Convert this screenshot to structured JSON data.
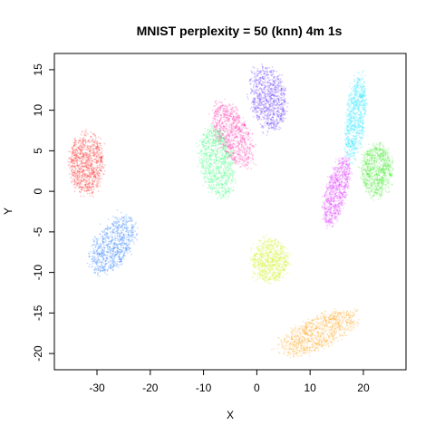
{
  "chart_data": {
    "type": "scatter",
    "title": "MNIST perplexity = 50 (knn) 4m 1s",
    "xlabel": "X",
    "ylabel": "Y",
    "xlim": [
      -38,
      28
    ],
    "ylim": [
      -22,
      17
    ],
    "x_ticks": [
      -30,
      -20,
      -10,
      0,
      10,
      20
    ],
    "y_ticks": [
      -20,
      -15,
      -10,
      -5,
      0,
      5,
      10,
      15
    ],
    "grid": false,
    "legend": "none",
    "series": [
      {
        "color": "#ff0000",
        "cx": -32.0,
        "cy": 3.5,
        "rx": 3.0,
        "ry": 3.5,
        "angle": 0,
        "n": 900
      },
      {
        "color": "#0066ff",
        "cx": -27.0,
        "cy": -6.6,
        "rx": 2.5,
        "ry": 4.5,
        "angle": -55,
        "n": 800
      },
      {
        "color": "#ff1aa6",
        "cx": -4.5,
        "cy": 7.0,
        "rx": 2.5,
        "ry": 4.5,
        "angle": 45,
        "n": 900
      },
      {
        "color": "#1aff66",
        "cx": -7.5,
        "cy": 3.5,
        "rx": 2.8,
        "ry": 4.2,
        "angle": 20,
        "n": 900
      },
      {
        "color": "#4d1aff",
        "cx": 2.2,
        "cy": 11.5,
        "rx": 3.0,
        "ry": 3.8,
        "angle": 30,
        "n": 900
      },
      {
        "color": "#00e5ff",
        "cx": 18.5,
        "cy": 9.0,
        "rx": 1.7,
        "ry": 5.0,
        "angle": -10,
        "n": 800
      },
      {
        "color": "#33e61a",
        "cx": 22.5,
        "cy": 2.5,
        "rx": 2.7,
        "ry": 3.0,
        "angle": 0,
        "n": 900
      },
      {
        "color": "#d91aff",
        "cx": 15.0,
        "cy": 0.0,
        "rx": 1.8,
        "ry": 4.2,
        "angle": -25,
        "n": 800
      },
      {
        "color": "#c8f000",
        "cx": 2.5,
        "cy": -8.5,
        "rx": 3.2,
        "ry": 2.5,
        "angle": 0,
        "n": 800
      },
      {
        "color": "#ff9900",
        "cx": 11.5,
        "cy": -17.5,
        "rx": 7.0,
        "ry": 1.9,
        "angle": 15,
        "n": 1000
      }
    ]
  }
}
